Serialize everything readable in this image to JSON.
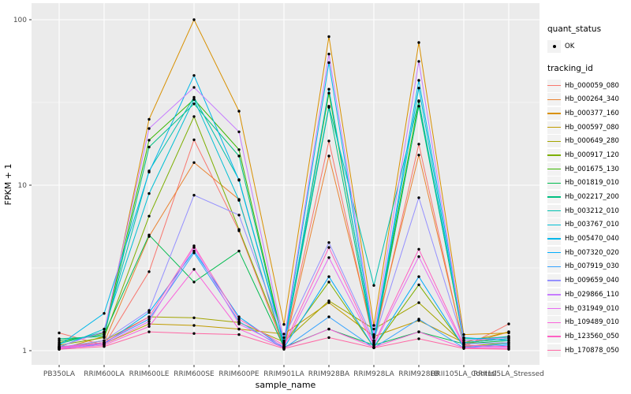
{
  "figure": {
    "y_axis": {
      "title": "FPKM + 1"
    },
    "x_axis": {
      "title": "sample_name"
    },
    "legend": {
      "quant_status_title": "quant_status",
      "quant_status_ok_label": "OK",
      "tracking_id_title": "tracking_id"
    }
  },
  "chart_data": {
    "type": "line",
    "title": "",
    "xlabel": "sample_name",
    "ylabel": "FPKM + 1",
    "y_scale": "log10",
    "ylim": [
      0.82,
      126
    ],
    "y_ticks": [
      1,
      10,
      100
    ],
    "y_minor_ticks": [
      3.1623,
      31.623
    ],
    "grid": "white major and minor gridlines on gray panel",
    "panel_background": "#EBEBEB",
    "point_color": "#000000",
    "legend_position": "right",
    "categories": [
      "PB350LA",
      "RRIM600LA",
      "RRIM600LE",
      "RRIM600SE",
      "RRIM600PE",
      "RRIM901LA",
      "RRIM928BA",
      "RRIM928LA",
      "RRIM928LB",
      "RRII105LA_Control",
      "RRII105LA_Stressed"
    ],
    "series": [
      {
        "name": "Hb_000059_080",
        "color": "#F8766D",
        "values": [
          1.28,
          1.08,
          3.0,
          18.8,
          5.3,
          1.05,
          18.5,
          1.12,
          17.7,
          1.05,
          1.45
        ]
      },
      {
        "name": "Hb_000264_340",
        "color": "#EA8331",
        "values": [
          1.05,
          1.12,
          4.9,
          13.7,
          8.2,
          1.02,
          15.0,
          1.2,
          15.2,
          1.08,
          1.3
        ]
      },
      {
        "name": "Hb_000377_160",
        "color": "#D89000",
        "values": [
          1.02,
          1.22,
          25.0,
          100.0,
          28.0,
          1.44,
          79.0,
          1.42,
          72.8,
          1.25,
          1.28
        ]
      },
      {
        "name": "Hb_000597_080",
        "color": "#C09B00",
        "values": [
          1.06,
          1.1,
          1.45,
          1.42,
          1.35,
          1.26,
          1.95,
          1.22,
          1.52,
          1.12,
          1.3
        ]
      },
      {
        "name": "Hb_000649_280",
        "color": "#A3A500",
        "values": [
          1.04,
          1.15,
          1.6,
          1.58,
          1.48,
          1.13,
          2.0,
          1.35,
          1.95,
          1.1,
          1.22
        ]
      },
      {
        "name": "Hb_000917_120",
        "color": "#7CAE00",
        "values": [
          1.08,
          1.2,
          6.5,
          26.0,
          5.4,
          1.1,
          2.6,
          1.05,
          2.5,
          1.06,
          1.12
        ]
      },
      {
        "name": "Hb_001675_130",
        "color": "#39B600",
        "values": [
          1.12,
          1.28,
          18.7,
          33.0,
          16.4,
          1.08,
          36.0,
          1.15,
          32.0,
          1.12,
          1.18
        ]
      },
      {
        "name": "Hb_001819_010",
        "color": "#00BB4E",
        "values": [
          1.15,
          1.25,
          5.0,
          2.6,
          4.0,
          1.05,
          1.35,
          1.08,
          1.3,
          1.1,
          1.15
        ]
      },
      {
        "name": "Hb_002217_200",
        "color": "#00C081",
        "values": [
          1.18,
          1.22,
          17.0,
          31.0,
          15.0,
          1.06,
          29.5,
          1.1,
          30.0,
          1.18,
          1.2
        ]
      },
      {
        "name": "Hb_003212_010",
        "color": "#00C0AF",
        "values": [
          1.1,
          1.3,
          12.2,
          34.0,
          10.8,
          1.12,
          30.0,
          2.48,
          32.4,
          1.15,
          1.22
        ]
      },
      {
        "name": "Hb_003767_010",
        "color": "#00BFD3",
        "values": [
          1.05,
          1.35,
          8.9,
          33.0,
          8.1,
          1.05,
          38.0,
          1.12,
          38.6,
          1.12,
          1.18
        ]
      },
      {
        "name": "Hb_005470_040",
        "color": "#00B7E9",
        "values": [
          1.08,
          1.68,
          12.0,
          46.0,
          10.7,
          1.1,
          55.0,
          1.15,
          43.0,
          1.2,
          1.15
        ]
      },
      {
        "name": "Hb_007320_020",
        "color": "#00ACFC",
        "values": [
          1.02,
          1.1,
          1.7,
          4.0,
          1.6,
          1.04,
          2.8,
          1.05,
          2.8,
          1.05,
          1.1
        ]
      },
      {
        "name": "Hb_007919_030",
        "color": "#35A2FF",
        "values": [
          1.03,
          1.12,
          1.55,
          3.9,
          1.5,
          1.03,
          1.6,
          1.04,
          1.55,
          1.04,
          1.08
        ]
      },
      {
        "name": "Hb_009659_040",
        "color": "#9590FF",
        "values": [
          1.05,
          1.15,
          1.75,
          8.7,
          6.6,
          1.2,
          4.5,
          1.15,
          8.4,
          1.1,
          1.12
        ]
      },
      {
        "name": "Hb_029866_110",
        "color": "#C77CFF",
        "values": [
          1.06,
          1.3,
          22.0,
          39.0,
          21.0,
          1.15,
          62.0,
          1.25,
          56.0,
          1.15,
          1.2
        ]
      },
      {
        "name": "Hb_031949_010",
        "color": "#E76BF3",
        "values": [
          1.04,
          1.1,
          1.5,
          4.2,
          1.45,
          1.06,
          3.65,
          1.08,
          3.7,
          1.06,
          1.05
        ]
      },
      {
        "name": "Hb_109489_010",
        "color": "#FA62DB",
        "values": [
          1.03,
          1.08,
          1.4,
          3.1,
          1.35,
          1.04,
          1.35,
          1.05,
          1.3,
          1.04,
          1.03
        ]
      },
      {
        "name": "Hb_123560_050",
        "color": "#FF61C3",
        "values": [
          1.05,
          1.12,
          1.6,
          4.3,
          1.55,
          1.08,
          4.2,
          1.1,
          4.1,
          1.08,
          1.06
        ]
      },
      {
        "name": "Hb_170878_050",
        "color": "#FF67A4",
        "values": [
          1.02,
          1.06,
          1.3,
          1.27,
          1.25,
          1.03,
          1.2,
          1.04,
          1.18,
          1.03,
          1.02
        ]
      }
    ]
  }
}
